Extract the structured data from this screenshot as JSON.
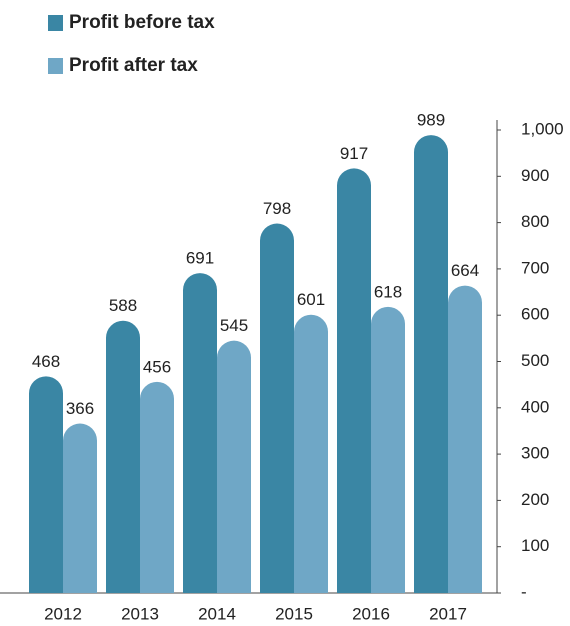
{
  "chart_data": {
    "type": "bar",
    "categories": [
      "2012",
      "2013",
      "2014",
      "2015",
      "2016",
      "2017"
    ],
    "series": [
      {
        "name": "Profit before tax",
        "color": "#3a86a4",
        "values": [
          468,
          588,
          691,
          798,
          917,
          989
        ]
      },
      {
        "name": "Profit after tax",
        "color": "#6fa7c6",
        "values": [
          366,
          456,
          545,
          601,
          618,
          664
        ]
      }
    ],
    "ylim": [
      0,
      1000
    ],
    "yticks": [
      {
        "value": 0,
        "label": "-"
      },
      100,
      200,
      300,
      400,
      500,
      600,
      700,
      800,
      900,
      {
        "value": 1000,
        "label": "1,000"
      }
    ],
    "axis_side": "right",
    "grid": false,
    "legend": "top-left"
  }
}
